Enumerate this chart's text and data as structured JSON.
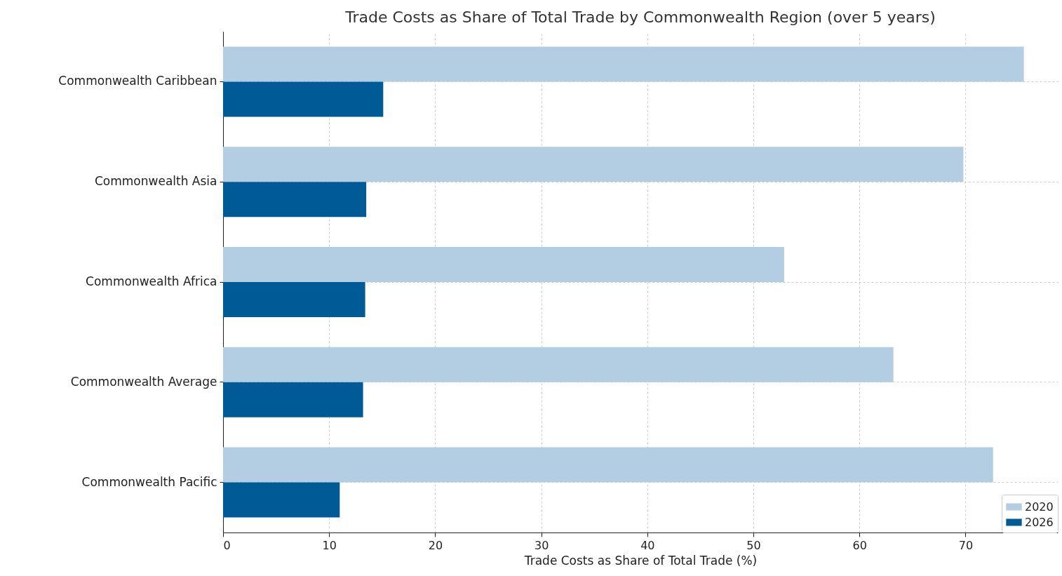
{
  "chart_data": {
    "type": "bar",
    "orientation": "horizontal",
    "title": "Trade Costs as Share of Total Trade by Commonwealth Region (over 5 years)",
    "xlabel": "Trade Costs as Share of Total Trade (%)",
    "categories": [
      "Commonwealth Caribbean",
      "Commonwealth Asia",
      "Commonwealth Africa",
      "Commonwealth Average",
      "Commonwealth Pacific"
    ],
    "series": [
      {
        "name": "2020",
        "color": "#b3cde3",
        "values": [
          75.5,
          69.8,
          52.9,
          63.2,
          72.6
        ]
      },
      {
        "name": "2026",
        "color": "#005a96",
        "values": [
          15.1,
          13.5,
          13.4,
          13.2,
          11.0
        ]
      }
    ],
    "xlim": [
      0,
      78.7
    ],
    "xticks": [
      0,
      10,
      20,
      30,
      40,
      50,
      60,
      70
    ],
    "grid": true,
    "legend": "bottom right"
  }
}
